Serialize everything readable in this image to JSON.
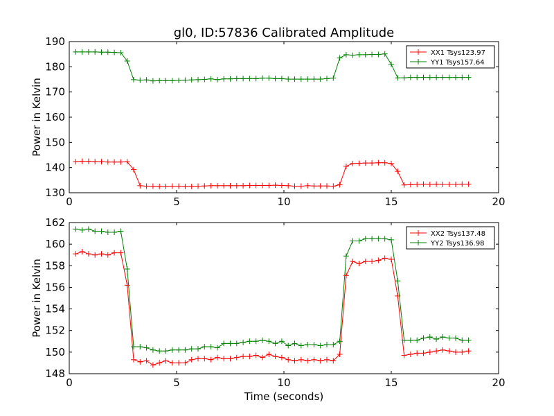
{
  "figure": {
    "title": "gl0, ID:57836 Calibrated Amplitude"
  },
  "chart_data": [
    {
      "type": "line",
      "title": "gl0, ID:57836 Calibrated Amplitude",
      "xlabel": "",
      "ylabel": "Power in Kelvin",
      "xlim": [
        0,
        20
      ],
      "ylim": [
        130,
        190
      ],
      "xticks": [
        0,
        5,
        10,
        15,
        20
      ],
      "yticks": [
        130,
        140,
        150,
        160,
        170,
        180,
        190
      ],
      "grid": false,
      "legend_position": "top-right",
      "x": [
        0.3,
        0.6,
        0.9,
        1.2,
        1.5,
        1.8,
        2.1,
        2.4,
        2.7,
        3.0,
        3.3,
        3.6,
        3.9,
        4.2,
        4.5,
        4.8,
        5.1,
        5.4,
        5.7,
        6.0,
        6.3,
        6.6,
        6.9,
        7.2,
        7.5,
        7.8,
        8.1,
        8.4,
        8.7,
        9.0,
        9.3,
        9.6,
        9.9,
        10.2,
        10.5,
        10.8,
        11.1,
        11.4,
        11.7,
        12.0,
        12.3,
        12.6,
        12.9,
        13.2,
        13.5,
        13.8,
        14.1,
        14.4,
        14.7,
        15.0,
        15.3,
        15.6,
        15.9,
        16.2,
        16.5,
        16.8,
        17.1,
        17.4,
        17.7,
        18.0,
        18.3,
        18.6
      ],
      "series": [
        {
          "name": "XX1 Tsys123.97",
          "color": "#ff0000",
          "values": [
            142.3,
            142.5,
            142.5,
            142.3,
            142.3,
            142.2,
            142.2,
            142.2,
            142.3,
            139.2,
            132.8,
            132.6,
            132.6,
            132.5,
            132.5,
            132.6,
            132.6,
            132.5,
            132.5,
            132.6,
            132.7,
            132.8,
            132.8,
            132.8,
            132.8,
            132.8,
            132.8,
            132.9,
            132.9,
            132.9,
            132.9,
            133.0,
            132.9,
            132.8,
            132.6,
            132.6,
            132.8,
            132.7,
            132.7,
            132.7,
            132.6,
            133.2,
            140.5,
            141.6,
            141.7,
            141.8,
            141.8,
            141.9,
            141.9,
            141.6,
            138.5,
            133.1,
            133.2,
            133.3,
            133.4,
            133.3,
            133.4,
            133.3,
            133.3,
            133.3,
            133.4,
            133.4
          ]
        },
        {
          "name": "YY1 Tsys157.64",
          "color": "#008000",
          "values": [
            185.9,
            185.9,
            185.9,
            185.9,
            185.8,
            185.8,
            185.7,
            185.6,
            182.3,
            174.9,
            174.7,
            174.8,
            174.4,
            174.5,
            174.5,
            174.5,
            174.6,
            174.7,
            174.8,
            174.9,
            175.0,
            175.2,
            174.9,
            175.2,
            175.2,
            175.3,
            175.3,
            175.3,
            175.3,
            175.5,
            175.5,
            175.3,
            175.3,
            175.1,
            175.1,
            175.1,
            175.1,
            175.1,
            175.1,
            175.3,
            175.5,
            183.5,
            184.8,
            184.6,
            184.8,
            184.8,
            184.9,
            184.9,
            185.1,
            181.0,
            175.6,
            175.6,
            175.8,
            175.8,
            175.8,
            175.8,
            175.8,
            175.8,
            175.8,
            175.8,
            175.8,
            175.8
          ]
        }
      ]
    },
    {
      "type": "line",
      "title": "",
      "xlabel": "Time (seconds)",
      "ylabel": "Power in Kelvin",
      "xlim": [
        0,
        20
      ],
      "ylim": [
        148,
        162
      ],
      "xticks": [
        0,
        5,
        10,
        15,
        20
      ],
      "yticks": [
        148,
        150,
        152,
        154,
        156,
        158,
        160,
        162
      ],
      "grid": false,
      "legend_position": "top-right",
      "x": [
        0.3,
        0.6,
        0.9,
        1.2,
        1.5,
        1.8,
        2.1,
        2.4,
        2.7,
        3.0,
        3.3,
        3.6,
        3.9,
        4.2,
        4.5,
        4.8,
        5.1,
        5.4,
        5.7,
        6.0,
        6.3,
        6.6,
        6.9,
        7.2,
        7.5,
        7.8,
        8.1,
        8.4,
        8.7,
        9.0,
        9.3,
        9.6,
        9.9,
        10.2,
        10.5,
        10.8,
        11.1,
        11.4,
        11.7,
        12.0,
        12.3,
        12.6,
        12.9,
        13.2,
        13.5,
        13.8,
        14.1,
        14.4,
        14.7,
        15.0,
        15.3,
        15.6,
        15.9,
        16.2,
        16.5,
        16.8,
        17.1,
        17.4,
        17.7,
        18.0,
        18.3,
        18.6
      ],
      "series": [
        {
          "name": "XX2 Tsys137.48",
          "color": "#ff0000",
          "values": [
            159.1,
            159.3,
            159.1,
            159.0,
            159.1,
            159.0,
            159.2,
            159.2,
            156.2,
            149.3,
            149.1,
            149.2,
            148.8,
            149.0,
            149.2,
            149.0,
            149.0,
            149.0,
            149.3,
            149.4,
            149.4,
            149.3,
            149.5,
            149.4,
            149.4,
            149.5,
            149.6,
            149.6,
            149.7,
            149.5,
            149.8,
            149.6,
            149.5,
            149.3,
            149.2,
            149.3,
            149.2,
            149.3,
            149.2,
            149.3,
            149.2,
            149.8,
            157.1,
            158.4,
            158.2,
            158.4,
            158.4,
            158.5,
            158.7,
            158.6,
            155.2,
            149.7,
            149.8,
            149.9,
            149.9,
            150.0,
            150.1,
            150.2,
            150.1,
            150.0,
            150.0,
            150.1
          ]
        },
        {
          "name": "YY2 Tsys136.98",
          "color": "#008000",
          "values": [
            161.4,
            161.3,
            161.4,
            161.2,
            161.2,
            161.1,
            161.1,
            161.2,
            157.7,
            150.5,
            150.5,
            150.4,
            150.2,
            150.1,
            150.1,
            150.2,
            150.2,
            150.2,
            150.3,
            150.3,
            150.5,
            150.5,
            150.4,
            150.8,
            150.8,
            150.8,
            150.9,
            151.0,
            151.0,
            151.1,
            151.0,
            150.8,
            151.0,
            150.6,
            150.8,
            150.6,
            150.7,
            150.7,
            150.6,
            150.7,
            150.7,
            151.0,
            158.9,
            160.3,
            160.3,
            160.5,
            160.5,
            160.5,
            160.5,
            160.4,
            156.6,
            151.1,
            151.1,
            151.1,
            151.3,
            151.4,
            151.2,
            151.4,
            151.3,
            151.3,
            151.1,
            151.1
          ]
        }
      ]
    }
  ]
}
